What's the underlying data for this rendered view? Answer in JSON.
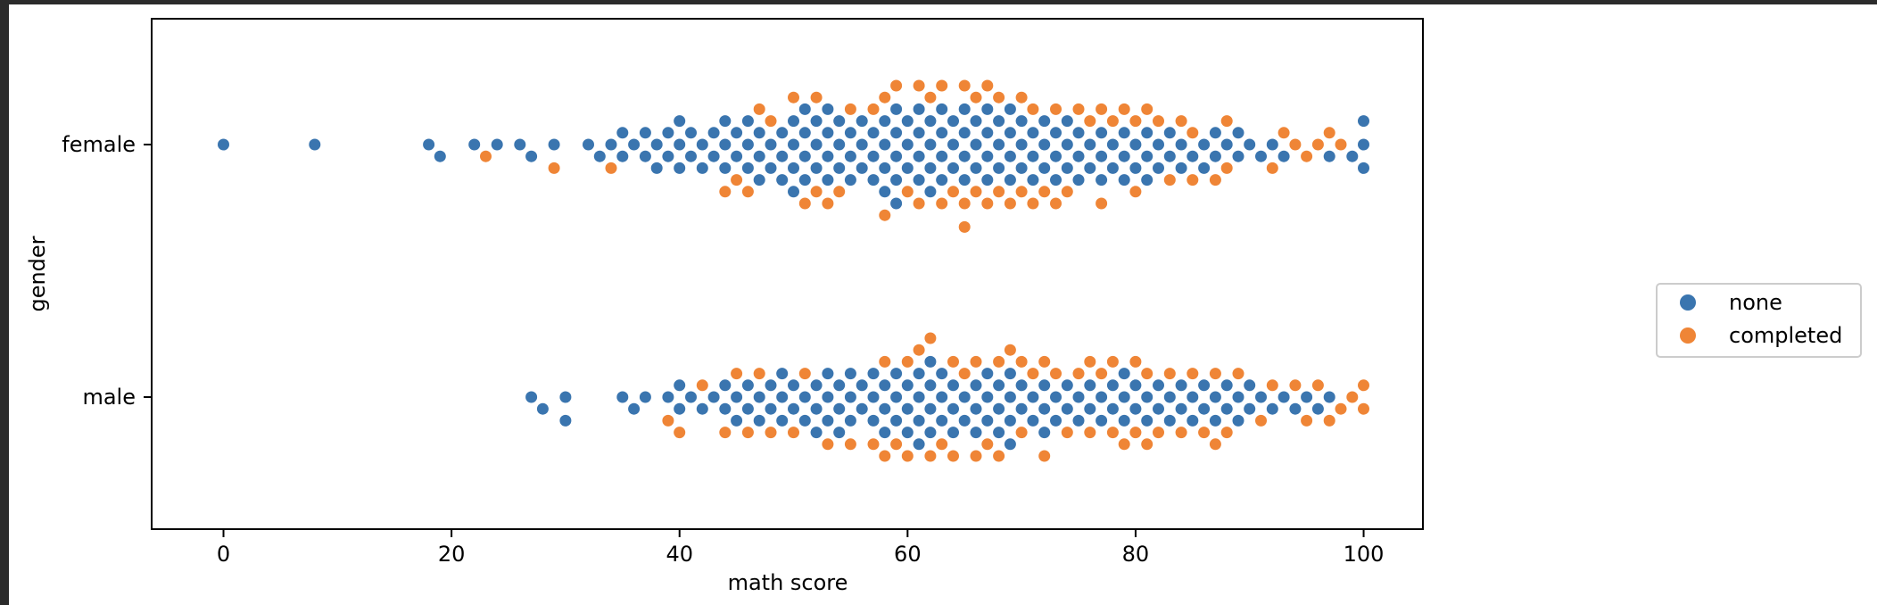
{
  "chart_data": {
    "type": "scatter",
    "subtype": "swarm",
    "title": "",
    "xlabel": "math score",
    "ylabel": "gender",
    "xlim": [
      -6.3,
      105.2
    ],
    "xticks": [
      0,
      20,
      40,
      60,
      80,
      100
    ],
    "categories": [
      "female",
      "male"
    ],
    "grid": false,
    "legend_position": "right",
    "series": [
      {
        "name": "none",
        "color": "#3a75af"
      },
      {
        "name": "completed",
        "color": "#ef8536"
      }
    ],
    "points": {
      "female": {
        "none": [
          0,
          8,
          18,
          19,
          22,
          24,
          26,
          27,
          29,
          32,
          33,
          34,
          35,
          35,
          36,
          37,
          37,
          38,
          38,
          39,
          39,
          40,
          40,
          40,
          41,
          41,
          42,
          42,
          43,
          43,
          44,
          44,
          44,
          45,
          45,
          46,
          46,
          46,
          47,
          47,
          47,
          48,
          48,
          49,
          49,
          49,
          50,
          50,
          50,
          50,
          51,
          51,
          51,
          51,
          52,
          52,
          52,
          53,
          53,
          53,
          53,
          54,
          54,
          54,
          55,
          55,
          55,
          56,
          56,
          56,
          57,
          57,
          57,
          58,
          58,
          58,
          58,
          59,
          59,
          59,
          59,
          59,
          60,
          60,
          60,
          61,
          61,
          61,
          61,
          62,
          62,
          62,
          62,
          63,
          63,
          63,
          63,
          64,
          64,
          64,
          65,
          65,
          65,
          65,
          66,
          66,
          66,
          67,
          67,
          67,
          67,
          68,
          68,
          68,
          69,
          69,
          69,
          69,
          70,
          70,
          70,
          71,
          71,
          71,
          72,
          72,
          72,
          73,
          73,
          73,
          74,
          74,
          74,
          75,
          75,
          75,
          76,
          76,
          77,
          77,
          77,
          78,
          78,
          79,
          79,
          79,
          80,
          80,
          81,
          81,
          81,
          82,
          82,
          83,
          83,
          84,
          84,
          85,
          86,
          86,
          87,
          87,
          88,
          89,
          89,
          90,
          91,
          92,
          93,
          97,
          99,
          100,
          100,
          100
        ],
        "completed": [
          23,
          29,
          34,
          44,
          45,
          46,
          47,
          48,
          50,
          51,
          52,
          52,
          53,
          54,
          55,
          57,
          58,
          58,
          59,
          60,
          61,
          61,
          62,
          63,
          63,
          64,
          65,
          65,
          65,
          66,
          66,
          67,
          67,
          68,
          68,
          69,
          70,
          70,
          71,
          71,
          72,
          73,
          73,
          74,
          75,
          76,
          77,
          77,
          78,
          79,
          80,
          80,
          81,
          82,
          83,
          84,
          85,
          85,
          87,
          88,
          88,
          92,
          93,
          94,
          95,
          96,
          97,
          98
        ]
      },
      "male": {
        "none": [
          27,
          28,
          30,
          30,
          35,
          36,
          37,
          39,
          40,
          40,
          41,
          42,
          43,
          44,
          44,
          45,
          45,
          46,
          46,
          47,
          47,
          48,
          48,
          49,
          49,
          49,
          50,
          50,
          51,
          51,
          52,
          52,
          52,
          53,
          53,
          53,
          54,
          54,
          54,
          55,
          55,
          55,
          56,
          56,
          57,
          57,
          57,
          58,
          58,
          58,
          59,
          59,
          59,
          60,
          60,
          60,
          61,
          61,
          61,
          61,
          62,
          62,
          62,
          62,
          63,
          63,
          63,
          64,
          64,
          64,
          65,
          65,
          66,
          66,
          66,
          67,
          67,
          67,
          68,
          68,
          68,
          69,
          69,
          69,
          69,
          70,
          70,
          71,
          71,
          72,
          72,
          72,
          73,
          73,
          74,
          74,
          75,
          75,
          76,
          76,
          77,
          77,
          78,
          78,
          79,
          79,
          79,
          80,
          80,
          81,
          81,
          82,
          82,
          83,
          83,
          84,
          84,
          85,
          85,
          86,
          86,
          87,
          87,
          88,
          88,
          89,
          89,
          90,
          90,
          91,
          92,
          93,
          94,
          95,
          96,
          97
        ],
        "completed": [
          39,
          40,
          42,
          44,
          45,
          46,
          47,
          48,
          50,
          51,
          53,
          55,
          57,
          58,
          58,
          59,
          60,
          60,
          61,
          62,
          62,
          63,
          64,
          64,
          65,
          66,
          66,
          67,
          68,
          68,
          69,
          70,
          70,
          71,
          72,
          72,
          73,
          74,
          75,
          76,
          76,
          77,
          78,
          78,
          79,
          80,
          80,
          81,
          81,
          82,
          83,
          84,
          85,
          86,
          87,
          87,
          88,
          89,
          91,
          92,
          94,
          95,
          96,
          97,
          98,
          99,
          100,
          100
        ]
      }
    }
  }
}
